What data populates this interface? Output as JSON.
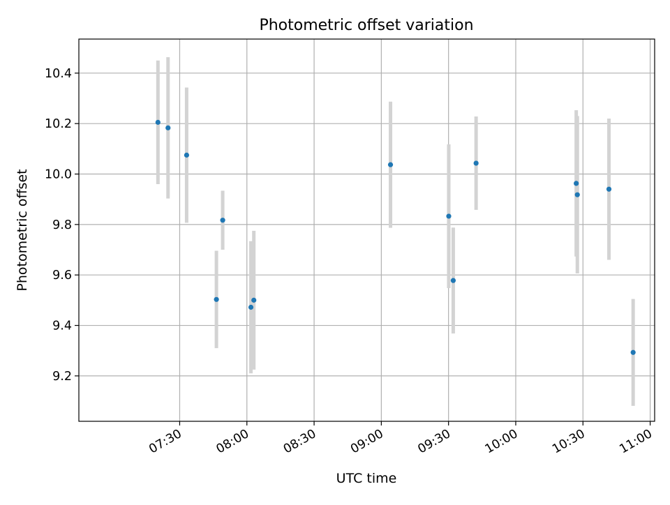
{
  "chart_data": {
    "type": "scatter",
    "title": "Photometric offset variation",
    "xlabel": "UTC time",
    "ylabel": "Photometric offset",
    "grid": true,
    "xlim_minutes": [
      405,
      662
    ],
    "ylim": [
      9.02,
      10.535
    ],
    "x_ticks": [
      {
        "label": "07:30",
        "minutes": 450
      },
      {
        "label": "08:00",
        "minutes": 480
      },
      {
        "label": "08:30",
        "minutes": 510
      },
      {
        "label": "09:00",
        "minutes": 540
      },
      {
        "label": "09:30",
        "minutes": 570
      },
      {
        "label": "10:00",
        "minutes": 600
      },
      {
        "label": "10:30",
        "minutes": 630
      },
      {
        "label": "11:00",
        "minutes": 660
      }
    ],
    "y_ticks": [
      9.2,
      9.4,
      9.6,
      9.8,
      10.0,
      10.2,
      10.4
    ],
    "y_tick_labels": [
      "9.2",
      "9.4",
      "9.6",
      "9.8",
      "10.0",
      "10.2",
      "10.4"
    ],
    "series": [
      {
        "name": "Photometric offset",
        "points": [
          {
            "time": "07:20",
            "minutes": 440.3,
            "value": 10.205,
            "err": 0.245
          },
          {
            "time": "07:25",
            "minutes": 444.8,
            "value": 10.183,
            "err": 0.28
          },
          {
            "time": "07:33",
            "minutes": 453.1,
            "value": 10.075,
            "err": 0.268
          },
          {
            "time": "07:46",
            "minutes": 466.4,
            "value": 9.503,
            "err": 0.193
          },
          {
            "time": "07:49",
            "minutes": 469.2,
            "value": 9.817,
            "err": 0.117
          },
          {
            "time": "08:01",
            "minutes": 481.8,
            "value": 9.472,
            "err": 0.262
          },
          {
            "time": "08:03",
            "minutes": 483.1,
            "value": 9.5,
            "err": 0.275
          },
          {
            "time": "09:04",
            "minutes": 544.1,
            "value": 10.037,
            "err": 0.25
          },
          {
            "time": "09:30",
            "minutes": 570.1,
            "value": 9.833,
            "err": 0.285
          },
          {
            "time": "09:32",
            "minutes": 572.1,
            "value": 9.578,
            "err": 0.21
          },
          {
            "time": "09:42",
            "minutes": 582.3,
            "value": 10.043,
            "err": 0.185
          },
          {
            "time": "10:27",
            "minutes": 627.0,
            "value": 9.963,
            "err": 0.29
          },
          {
            "time": "10:27",
            "minutes": 627.5,
            "value": 9.918,
            "err": 0.312
          },
          {
            "time": "10:41",
            "minutes": 641.6,
            "value": 9.94,
            "err": 0.28
          },
          {
            "time": "10:52",
            "minutes": 652.4,
            "value": 9.293,
            "err": 0.212
          }
        ]
      }
    ],
    "colors": {
      "marker": "#1f77b4",
      "errorbar": "#d3d3d3",
      "grid": "#b0b0b0",
      "axis": "#000000"
    }
  }
}
